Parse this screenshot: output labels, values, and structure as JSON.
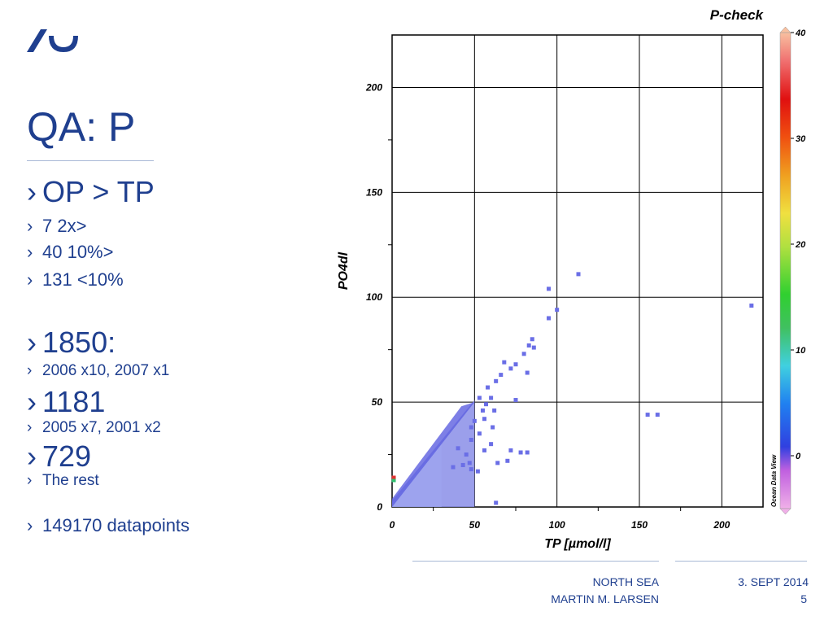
{
  "slide": {
    "title": "QA: P",
    "bullets": [
      {
        "text": "OP > TP",
        "size": "l"
      },
      {
        "text": "7 2x>",
        "size": "m"
      },
      {
        "text": "40 10%>",
        "size": "m"
      },
      {
        "text": "131 <10%",
        "size": "m"
      },
      {
        "text": "1850:",
        "size": "xl"
      },
      {
        "text": "2006 x10, 2007 x1",
        "size": "s"
      },
      {
        "text": "1181",
        "size": "xl"
      },
      {
        "text": "2005 x7, 2001 x2",
        "size": "s"
      },
      {
        "text": "729",
        "size": "xl"
      },
      {
        "text": "The rest",
        "size": "s"
      },
      {
        "text": "149170 datapoints",
        "size": "m"
      }
    ],
    "bullet_marker": "›"
  },
  "footer": {
    "left_line1": "NORTH SEA",
    "left_line2": "MARTIN M. LARSEN",
    "right_line1": "3. SEPT 2014",
    "right_line2": "5"
  },
  "colors": {
    "accent": "#1f3f8f",
    "points": "#6a6ee6"
  },
  "chart_data": {
    "type": "scatter",
    "title": "P-check",
    "xlabel": "TP [µmol/l]",
    "ylabel": "PO4dl",
    "xlim": [
      0,
      225
    ],
    "ylim": [
      0,
      225
    ],
    "xticks": [
      0,
      50,
      100,
      150,
      200
    ],
    "yticks": [
      0,
      50,
      100,
      150,
      200
    ],
    "grid": true,
    "colorbar": {
      "label": "Ocean Data View",
      "range": [
        -5,
        40
      ],
      "ticks": [
        0,
        10,
        20,
        30,
        40
      ]
    },
    "dense_region": {
      "description_points": "cluster along y=x from 0 to 50"
    },
    "points": [
      [
        95,
        104
      ],
      [
        113,
        111
      ],
      [
        100,
        94
      ],
      [
        95,
        90
      ],
      [
        218,
        96
      ],
      [
        85,
        80
      ],
      [
        83,
        77
      ],
      [
        86,
        76
      ],
      [
        80,
        73
      ],
      [
        68,
        69
      ],
      [
        75,
        68
      ],
      [
        72,
        66
      ],
      [
        66,
        63
      ],
      [
        82,
        64
      ],
      [
        63,
        60
      ],
      [
        58,
        57
      ],
      [
        60,
        52
      ],
      [
        75,
        51
      ],
      [
        53,
        52
      ],
      [
        57,
        49
      ],
      [
        55,
        46
      ],
      [
        62,
        46
      ],
      [
        50,
        41
      ],
      [
        48,
        38
      ],
      [
        56,
        42
      ],
      [
        61,
        38
      ],
      [
        53,
        35
      ],
      [
        48,
        32
      ],
      [
        60,
        30
      ],
      [
        56,
        27
      ],
      [
        72,
        27
      ],
      [
        78,
        26
      ],
      [
        82,
        26
      ],
      [
        64,
        21
      ],
      [
        70,
        22
      ],
      [
        45,
        25
      ],
      [
        43,
        20
      ],
      [
        37,
        19
      ],
      [
        48,
        18
      ],
      [
        63,
        2
      ],
      [
        155,
        44
      ],
      [
        161,
        44
      ],
      [
        52,
        17
      ],
      [
        47,
        21
      ],
      [
        40,
        28
      ]
    ],
    "outlier_colored": {
      "x": 1,
      "y": 13,
      "color_value": 12
    }
  }
}
